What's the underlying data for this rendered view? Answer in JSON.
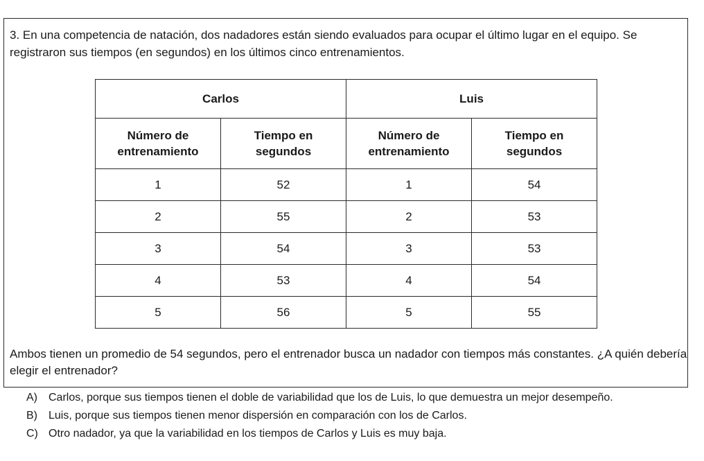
{
  "question": {
    "intro": "3. En una competencia de natación, dos nadadores están siendo evaluados para ocupar el último lugar en el equipo. Se registraron sus tiempos (en segundos) en los últimos cinco entrenamientos.",
    "closing": "Ambos tienen un promedio de 54 segundos, pero el entrenador busca un nadador con tiempos más constantes. ¿A quién debería elegir el entrenador?"
  },
  "table": {
    "groups": [
      "Carlos",
      "Luis"
    ],
    "columns": [
      {
        "line1": "Número de",
        "line2": "entrenamiento"
      },
      {
        "line1": "Tiempo en",
        "line2": "segundos"
      },
      {
        "line1": "Número de",
        "line2": "entrenamiento"
      },
      {
        "line1": "Tiempo en",
        "line2": "segundos"
      }
    ],
    "rows": [
      [
        "1",
        "52",
        "1",
        "54"
      ],
      [
        "2",
        "55",
        "2",
        "53"
      ],
      [
        "3",
        "54",
        "3",
        "53"
      ],
      [
        "4",
        "53",
        "4",
        "54"
      ],
      [
        "5",
        "56",
        "5",
        "55"
      ]
    ]
  },
  "options": [
    {
      "letter": "A)",
      "text": "Carlos, porque sus tiempos tienen el doble de variabilidad que los de Luis, lo que demuestra un mejor desempeño."
    },
    {
      "letter": "B)",
      "text": "Luis, porque sus tiempos tienen menor dispersión en comparación con los de Carlos."
    },
    {
      "letter": "C)",
      "text": "Otro nadador, ya que la variabilidad en los tiempos de Carlos y Luis es muy baja."
    }
  ]
}
